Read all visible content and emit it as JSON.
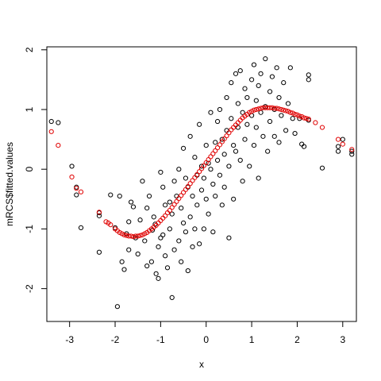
{
  "chart_data": {
    "type": "scatter",
    "title": "",
    "xlabel": "x",
    "ylabel": "mRCS$fitted.values",
    "xlim": [
      -3.5,
      3.3
    ],
    "ylim": [
      -2.55,
      2.05
    ],
    "x_ticks": [
      -3,
      -2,
      -1,
      0,
      1,
      2,
      3
    ],
    "y_ticks": [
      -2,
      -1,
      0,
      1,
      2
    ],
    "grid": false,
    "legend": "none",
    "colors": {
      "observed": "#000000",
      "fitted": "#e00000",
      "axis": "#000000"
    },
    "series": [
      {
        "marker": "open-circle",
        "color": "#000000",
        "points": [
          [
            -3.4,
            0.8
          ],
          [
            -3.25,
            0.78
          ],
          [
            -2.95,
            0.05
          ],
          [
            -2.85,
            -0.3
          ],
          [
            -2.85,
            -0.43
          ],
          [
            -2.75,
            -0.98
          ],
          [
            -2.35,
            -0.73
          ],
          [
            -2.35,
            -0.78
          ],
          [
            -2.35,
            -1.39
          ],
          [
            -2.1,
            -0.43
          ],
          [
            -2.0,
            -0.98
          ],
          [
            -1.95,
            -2.3
          ],
          [
            -1.9,
            -0.45
          ],
          [
            -1.85,
            -1.55
          ],
          [
            -1.8,
            -1.68
          ],
          [
            -1.75,
            -1.08
          ],
          [
            -1.7,
            -0.88
          ],
          [
            -1.7,
            -1.35
          ],
          [
            -1.65,
            -0.55
          ],
          [
            -1.6,
            -0.63
          ],
          [
            -1.55,
            -1.15
          ],
          [
            -1.5,
            -1.42
          ],
          [
            -1.45,
            -0.85
          ],
          [
            -1.4,
            -0.2
          ],
          [
            -1.35,
            -1.2
          ],
          [
            -1.3,
            -1.62
          ],
          [
            -1.3,
            -0.65
          ],
          [
            -1.25,
            -0.45
          ],
          [
            -1.2,
            -1.55
          ],
          [
            -1.18,
            -1.02
          ],
          [
            -1.15,
            -0.8
          ],
          [
            -1.12,
            -0.92
          ],
          [
            -1.1,
            -1.75
          ],
          [
            -1.05,
            -1.83
          ],
          [
            -1.05,
            -1.3
          ],
          [
            -1.0,
            -0.05
          ],
          [
            -1.0,
            -1.15
          ],
          [
            -0.95,
            -1.1
          ],
          [
            -0.95,
            -0.3
          ],
          [
            -0.9,
            -1.45
          ],
          [
            -0.9,
            -0.6
          ],
          [
            -0.85,
            -1.65
          ],
          [
            -0.8,
            -0.55
          ],
          [
            -0.8,
            -1.0
          ],
          [
            -0.75,
            -2.15
          ],
          [
            -0.75,
            -0.75
          ],
          [
            -0.7,
            -1.35
          ],
          [
            -0.7,
            -0.2
          ],
          [
            -0.65,
            -0.45
          ],
          [
            -0.6,
            -1.2
          ],
          [
            -0.6,
            0.0
          ],
          [
            -0.55,
            -0.65
          ],
          [
            -0.55,
            -1.55
          ],
          [
            -0.5,
            -0.9
          ],
          [
            -0.5,
            0.35
          ],
          [
            -0.45,
            -1.05
          ],
          [
            -0.45,
            -0.15
          ],
          [
            -0.4,
            -0.3
          ],
          [
            -0.4,
            -1.7
          ],
          [
            -0.35,
            -0.8
          ],
          [
            -0.35,
            0.55
          ],
          [
            -0.3,
            -0.45
          ],
          [
            -0.3,
            -1.3
          ],
          [
            -0.25,
            -1.0
          ],
          [
            -0.25,
            0.2
          ],
          [
            -0.2,
            -0.1
          ],
          [
            -0.2,
            -0.6
          ],
          [
            -0.15,
            -1.25
          ],
          [
            -0.15,
            0.75
          ],
          [
            -0.1,
            0.05
          ],
          [
            -0.1,
            -0.35
          ],
          [
            -0.05,
            -0.15
          ],
          [
            -0.05,
            -1.0
          ],
          [
            0.0,
            0.4
          ],
          [
            0.0,
            -0.5
          ],
          [
            0.05,
            0.1
          ],
          [
            0.05,
            -0.75
          ],
          [
            0.1,
            0.95
          ],
          [
            0.1,
            0.0
          ],
          [
            0.15,
            -0.25
          ],
          [
            0.15,
            -1.05
          ],
          [
            0.2,
            0.45
          ],
          [
            0.2,
            -0.45
          ],
          [
            0.25,
            0.8
          ],
          [
            0.25,
            0.15
          ],
          [
            0.3,
            -0.1
          ],
          [
            0.3,
            1.0
          ],
          [
            0.35,
            0.5
          ],
          [
            0.35,
            -0.6
          ],
          [
            0.4,
            0.25
          ],
          [
            0.4,
            -0.3
          ],
          [
            0.45,
            1.2
          ],
          [
            0.45,
            0.65
          ],
          [
            0.5,
            0.05
          ],
          [
            0.5,
            -1.15
          ],
          [
            0.55,
            1.45
          ],
          [
            0.55,
            0.85
          ],
          [
            0.6,
            0.4
          ],
          [
            0.6,
            -0.5
          ],
          [
            0.65,
            1.6
          ],
          [
            0.65,
            0.3
          ],
          [
            0.7,
            1.1
          ],
          [
            0.7,
            0.7
          ],
          [
            0.75,
            1.65
          ],
          [
            0.75,
            0.15
          ],
          [
            0.8,
            0.95
          ],
          [
            0.8,
            -0.2
          ],
          [
            0.85,
            1.35
          ],
          [
            0.85,
            0.5
          ],
          [
            0.9,
            1.2
          ],
          [
            0.9,
            0.75
          ],
          [
            0.95,
            0.05
          ],
          [
            1.0,
            1.5
          ],
          [
            1.0,
            0.9
          ],
          [
            1.05,
            1.75
          ],
          [
            1.05,
            0.4
          ],
          [
            1.1,
            1.15
          ],
          [
            1.1,
            0.7
          ],
          [
            1.15,
            1.4
          ],
          [
            1.15,
            -0.15
          ],
          [
            1.2,
            0.95
          ],
          [
            1.2,
            1.6
          ],
          [
            1.25,
            0.55
          ],
          [
            1.3,
            1.85
          ],
          [
            1.3,
            1.05
          ],
          [
            1.35,
            0.3
          ],
          [
            1.4,
            1.3
          ],
          [
            1.4,
            0.8
          ],
          [
            1.45,
            1.55
          ],
          [
            1.5,
            1.0
          ],
          [
            1.5,
            0.55
          ],
          [
            1.55,
            1.7
          ],
          [
            1.6,
            1.2
          ],
          [
            1.6,
            0.45
          ],
          [
            1.65,
            0.9
          ],
          [
            1.7,
            1.45
          ],
          [
            1.75,
            0.65
          ],
          [
            1.8,
            1.1
          ],
          [
            1.85,
            1.7
          ],
          [
            1.9,
            0.85
          ],
          [
            1.95,
            0.6
          ],
          [
            2.05,
            0.85
          ],
          [
            2.1,
            0.42
          ],
          [
            2.15,
            0.38
          ],
          [
            2.25,
            1.58
          ],
          [
            2.25,
            1.5
          ],
          [
            2.25,
            0.82
          ],
          [
            2.55,
            0.02
          ],
          [
            2.9,
            0.38
          ],
          [
            2.9,
            0.3
          ],
          [
            3.0,
            0.5
          ],
          [
            3.2,
            0.3
          ],
          [
            3.2,
            0.25
          ]
        ]
      },
      {
        "marker": "open-circle",
        "color": "#e00000",
        "points": [
          [
            -3.4,
            0.63
          ],
          [
            -3.25,
            0.4
          ],
          [
            -2.95,
            -0.13
          ],
          [
            -2.85,
            -0.32
          ],
          [
            -2.75,
            -0.38
          ],
          [
            -2.35,
            -0.72
          ],
          [
            -2.2,
            -0.88
          ],
          [
            -2.15,
            -0.9
          ],
          [
            -2.1,
            -0.93
          ],
          [
            -2.0,
            -1.0
          ],
          [
            -1.95,
            -1.03
          ],
          [
            -1.9,
            -1.06
          ],
          [
            -1.85,
            -1.08
          ],
          [
            -1.8,
            -1.1
          ],
          [
            -1.75,
            -1.11
          ],
          [
            -1.7,
            -1.12
          ],
          [
            -1.65,
            -1.12
          ],
          [
            -1.6,
            -1.13
          ],
          [
            -1.55,
            -1.12
          ],
          [
            -1.5,
            -1.12
          ],
          [
            -1.45,
            -1.11
          ],
          [
            -1.4,
            -1.1
          ],
          [
            -1.35,
            -1.08
          ],
          [
            -1.3,
            -1.06
          ],
          [
            -1.25,
            -1.03
          ],
          [
            -1.2,
            -1.0
          ],
          [
            -1.15,
            -0.97
          ],
          [
            -1.1,
            -0.94
          ],
          [
            -1.05,
            -0.9
          ],
          [
            -1.0,
            -0.86
          ],
          [
            -0.95,
            -0.82
          ],
          [
            -0.9,
            -0.78
          ],
          [
            -0.85,
            -0.73
          ],
          [
            -0.8,
            -0.69
          ],
          [
            -0.75,
            -0.64
          ],
          [
            -0.7,
            -0.59
          ],
          [
            -0.65,
            -0.54
          ],
          [
            -0.6,
            -0.49
          ],
          [
            -0.55,
            -0.44
          ],
          [
            -0.5,
            -0.39
          ],
          [
            -0.45,
            -0.34
          ],
          [
            -0.4,
            -0.29
          ],
          [
            -0.35,
            -0.24
          ],
          [
            -0.3,
            -0.19
          ],
          [
            -0.25,
            -0.14
          ],
          [
            -0.2,
            -0.09
          ],
          [
            -0.15,
            -0.04
          ],
          [
            -0.1,
            0.01
          ],
          [
            -0.05,
            0.06
          ],
          [
            0.0,
            0.11
          ],
          [
            0.05,
            0.16
          ],
          [
            0.1,
            0.21
          ],
          [
            0.15,
            0.26
          ],
          [
            0.2,
            0.31
          ],
          [
            0.25,
            0.36
          ],
          [
            0.3,
            0.41
          ],
          [
            0.35,
            0.46
          ],
          [
            0.4,
            0.51
          ],
          [
            0.45,
            0.56
          ],
          [
            0.5,
            0.61
          ],
          [
            0.55,
            0.66
          ],
          [
            0.6,
            0.7
          ],
          [
            0.65,
            0.74
          ],
          [
            0.7,
            0.78
          ],
          [
            0.75,
            0.82
          ],
          [
            0.8,
            0.86
          ],
          [
            0.85,
            0.89
          ],
          [
            0.9,
            0.92
          ],
          [
            0.95,
            0.95
          ],
          [
            1.0,
            0.97
          ],
          [
            1.05,
            0.99
          ],
          [
            1.1,
            1.0
          ],
          [
            1.15,
            1.01
          ],
          [
            1.2,
            1.02
          ],
          [
            1.25,
            1.03
          ],
          [
            1.3,
            1.03
          ],
          [
            1.35,
            1.03
          ],
          [
            1.4,
            1.03
          ],
          [
            1.45,
            1.03
          ],
          [
            1.5,
            1.02
          ],
          [
            1.55,
            1.02
          ],
          [
            1.6,
            1.01
          ],
          [
            1.65,
            1.0
          ],
          [
            1.7,
            0.99
          ],
          [
            1.75,
            0.98
          ],
          [
            1.8,
            0.97
          ],
          [
            1.85,
            0.95
          ],
          [
            1.9,
            0.94
          ],
          [
            1.95,
            0.92
          ],
          [
            2.0,
            0.91
          ],
          [
            2.05,
            0.89
          ],
          [
            2.1,
            0.88
          ],
          [
            2.15,
            0.86
          ],
          [
            2.2,
            0.85
          ],
          [
            2.25,
            0.84
          ],
          [
            2.4,
            0.78
          ],
          [
            2.55,
            0.7
          ],
          [
            2.9,
            0.5
          ],
          [
            3.0,
            0.42
          ],
          [
            3.2,
            0.33
          ]
        ]
      }
    ]
  }
}
